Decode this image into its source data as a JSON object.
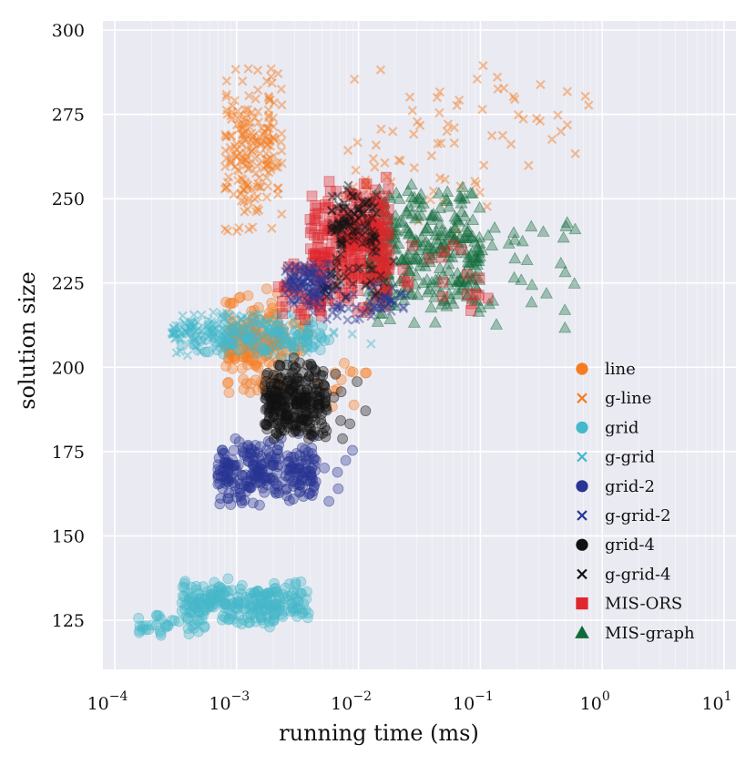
{
  "chart_data": {
    "type": "scatter",
    "title": "",
    "xlabel": "running time (ms)",
    "ylabel": "solution size",
    "xscale": "log",
    "xlim": [
      0.0001,
      10
    ],
    "ylim": [
      110,
      300
    ],
    "x_ticks": [
      {
        "value": 0.0001,
        "base": "10",
        "exp": "−4"
      },
      {
        "value": 0.001,
        "base": "10",
        "exp": "−3"
      },
      {
        "value": 0.01,
        "base": "10",
        "exp": "−2"
      },
      {
        "value": 0.1,
        "base": "10",
        "exp": "−1"
      },
      {
        "value": 1,
        "base": "10",
        "exp": "0"
      },
      {
        "value": 10,
        "base": "10",
        "exp": "1"
      }
    ],
    "y_ticks": [
      {
        "value": 125,
        "label": "125"
      },
      {
        "value": 150,
        "label": "150"
      },
      {
        "value": 175,
        "label": "175"
      },
      {
        "value": 200,
        "label": "200"
      },
      {
        "value": 225,
        "label": "225"
      },
      {
        "value": 250,
        "label": "250"
      },
      {
        "value": 275,
        "label": "275"
      },
      {
        "value": 300,
        "label": "300"
      }
    ],
    "grid": true,
    "legend_position": "right",
    "series": [
      {
        "name": "line",
        "marker": "circle",
        "color": "#f57c1f",
        "clusters": [
          {
            "x": [
              0.0008,
              0.0024
            ],
            "y": [
              188,
              225
            ],
            "n": 140
          },
          {
            "x": [
              0.0012,
              0.004
            ],
            "y": [
              200,
              215
            ],
            "n": 40
          },
          {
            "x": [
              0.004,
              0.012
            ],
            "y": [
              186,
              205
            ],
            "n": 12
          }
        ]
      },
      {
        "name": "g-line",
        "marker": "x",
        "color": "#f57c1f",
        "clusters": [
          {
            "x": [
              0.0008,
              0.0024
            ],
            "y": [
              237,
              292
            ],
            "n": 200
          },
          {
            "x": [
              0.008,
              0.12
            ],
            "y": [
              230,
              293
            ],
            "n": 60
          },
          {
            "x": [
              0.12,
              0.95
            ],
            "y": [
              255,
              292
            ],
            "n": 22
          }
        ]
      },
      {
        "name": "grid",
        "marker": "circle",
        "color": "#45b8c9",
        "clusters": [
          {
            "x": [
              0.00015,
              0.0005
            ],
            "y": [
              120,
              127
            ],
            "n": 35
          },
          {
            "x": [
              0.00035,
              0.004
            ],
            "y": [
              122,
              138
            ],
            "n": 240
          },
          {
            "x": [
              0.00035,
              0.006
            ],
            "y": [
              202,
              215
            ],
            "n": 80
          }
        ]
      },
      {
        "name": "g-grid",
        "marker": "x",
        "color": "#45b8c9",
        "clusters": [
          {
            "x": [
              0.00028,
              0.004
            ],
            "y": [
              203,
              217
            ],
            "n": 220
          },
          {
            "x": [
              0.004,
              0.02
            ],
            "y": [
              205,
              212
            ],
            "n": 6
          }
        ]
      },
      {
        "name": "grid-2",
        "marker": "circle",
        "color": "#283593",
        "clusters": [
          {
            "x": [
              0.0007,
              0.0045
            ],
            "y": [
              158,
              181
            ],
            "n": 250
          },
          {
            "x": [
              0.0045,
              0.012
            ],
            "y": [
              158,
              182
            ],
            "n": 6
          }
        ]
      },
      {
        "name": "g-grid-2",
        "marker": "x",
        "color": "#283593",
        "clusters": [
          {
            "x": [
              0.0025,
              0.006
            ],
            "y": [
              218,
              232
            ],
            "n": 120
          },
          {
            "x": [
              0.004,
              0.025
            ],
            "y": [
              213,
              225
            ],
            "n": 60
          }
        ]
      },
      {
        "name": "grid-4",
        "marker": "circle",
        "color": "#111111",
        "clusters": [
          {
            "x": [
              0.0017,
              0.0055
            ],
            "y": [
              176,
              204
            ],
            "n": 260
          },
          {
            "x": [
              0.005,
              0.013
            ],
            "y": [
              174,
              200
            ],
            "n": 8
          }
        ]
      },
      {
        "name": "g-grid-4",
        "marker": "x",
        "color": "#111111",
        "clusters": [
          {
            "x": [
              0.006,
              0.014
            ],
            "y": [
              232,
              254
            ],
            "n": 110
          },
          {
            "x": [
              0.005,
              0.02
            ],
            "y": [
              218,
              232
            ],
            "n": 30
          }
        ]
      },
      {
        "name": "MIS-ORS",
        "marker": "square",
        "color": "#e0252b",
        "clusters": [
          {
            "x": [
              0.004,
              0.018
            ],
            "y": [
              214,
              257
            ],
            "n": 280
          },
          {
            "x": [
              0.0022,
              0.005
            ],
            "y": [
              212,
              232
            ],
            "n": 40
          },
          {
            "x": [
              0.02,
              0.12
            ],
            "y": [
              212,
              240
            ],
            "n": 20
          }
        ]
      },
      {
        "name": "MIS-graph",
        "marker": "triangle",
        "color": "#0f6b3a",
        "clusters": [
          {
            "x": [
              0.012,
              0.1
            ],
            "y": [
              210,
              257
            ],
            "n": 320
          },
          {
            "x": [
              0.09,
              0.6
            ],
            "y": [
              208,
              250
            ],
            "n": 30
          }
        ]
      }
    ]
  }
}
